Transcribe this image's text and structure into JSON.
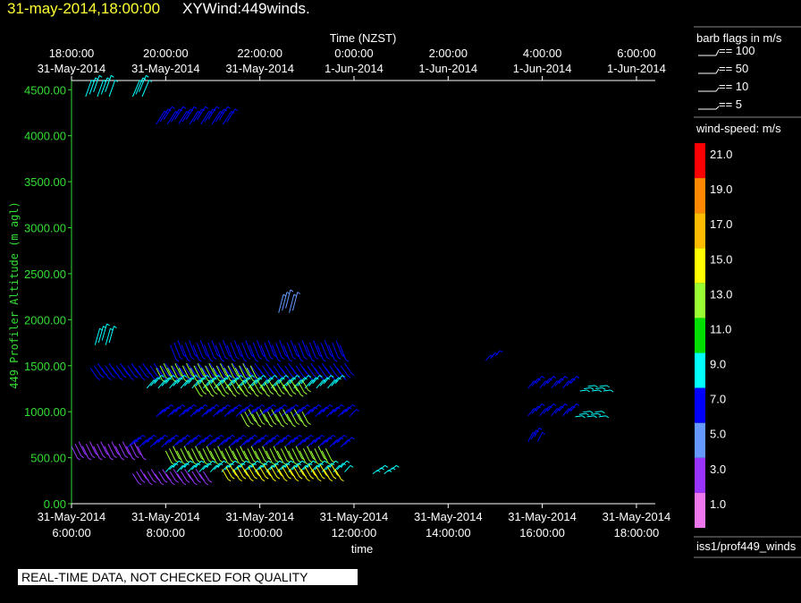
{
  "header": {
    "date_time": "31-may-2014,18:00:00",
    "title": "XYWind:449winds."
  },
  "banner": "REAL-TIME DATA, NOT CHECKED FOR QUALITY",
  "chart_data": {
    "type": "scatter",
    "title": "XYWind:449winds.",
    "xlabel": "time",
    "x2label": "Time (NZST)",
    "ylabel": "449 Profiler Altitude (m agl)",
    "ylim": [
      0,
      4600
    ],
    "grid": false,
    "x_ticks_bottom": [
      {
        "l1": "31-May-2014",
        "l2": "6:00:00"
      },
      {
        "l1": "31-May-2014",
        "l2": "8:00:00"
      },
      {
        "l1": "31-May-2014",
        "l2": "10:00:00"
      },
      {
        "l1": "31-May-2014",
        "l2": "12:00:00"
      },
      {
        "l1": "31-May-2014",
        "l2": "14:00:00"
      },
      {
        "l1": "31-May-2014",
        "l2": "16:00:00"
      },
      {
        "l1": "31-May-2014",
        "l2": "18:00:00"
      }
    ],
    "x_ticks_top": [
      {
        "l1": "18:00:00",
        "l2": "31-May-2014"
      },
      {
        "l1": "20:00:00",
        "l2": "31-May-2014"
      },
      {
        "l1": "22:00:00",
        "l2": "31-May-2014"
      },
      {
        "l1": "0:00:00",
        "l2": "1-Jun-2014"
      },
      {
        "l1": "2:00:00",
        "l2": "1-Jun-2014"
      },
      {
        "l1": "4:00:00",
        "l2": "1-Jun-2014"
      },
      {
        "l1": "6:00:00",
        "l2": "1-Jun-2014"
      }
    ],
    "y_ticks": [
      "0.00",
      "500.00",
      "1000.00",
      "1500.00",
      "2000.00",
      "2500.00",
      "3000.00",
      "3500.00",
      "4000.00",
      "4500.00"
    ],
    "barb_legend": {
      "title": "barb flags in m/s",
      "entries": [
        "== 100",
        "== 50",
        "== 10",
        "== 5"
      ]
    },
    "colorbar": {
      "title": "wind-speed: m/s",
      "levels": [
        {
          "label": "21.0",
          "color": "#ff0000"
        },
        {
          "label": "19.0",
          "color": "#ff8800"
        },
        {
          "label": "17.0",
          "color": "#ffbb00"
        },
        {
          "label": "15.0",
          "color": "#ffff00"
        },
        {
          "label": "13.0",
          "color": "#99ff33"
        },
        {
          "label": "11.0",
          "color": "#00dd00"
        },
        {
          "label": "9.0",
          "color": "#00ffff"
        },
        {
          "label": "7.0",
          "color": "#0000ff"
        },
        {
          "label": "5.0",
          "color": "#6699ff"
        },
        {
          "label": "3.0",
          "color": "#9933ff"
        },
        {
          "label": "1.0",
          "color": "#ee77ee"
        }
      ]
    },
    "source_label": "iss1/prof449_winds",
    "series": [
      {
        "x_start": 6.3,
        "x_end": 6.8,
        "altitude": 4450,
        "speed": 9,
        "dx": 0.25,
        "dy": 180
      },
      {
        "x_start": 7.3,
        "x_end": 7.5,
        "altitude": 4450,
        "speed": 9,
        "dx": 0.3,
        "dy": 180
      },
      {
        "x_start": 7.8,
        "x_end": 9.3,
        "altitude": 4150,
        "speed": 7,
        "dx": 0.35,
        "dy": 140
      },
      {
        "x_start": 6.5,
        "x_end": 6.8,
        "altitude": 1750,
        "speed": 8,
        "dx": 0.2,
        "dy": 180
      },
      {
        "x_start": 8.1,
        "x_end": 11.7,
        "altitude": 1750,
        "speed": 6,
        "dx": 0.25,
        "dy": -160
      },
      {
        "x_start": 10.4,
        "x_end": 10.7,
        "altitude": 2100,
        "speed": 4,
        "dx": 0.2,
        "dy": 200
      },
      {
        "x_start": 6.4,
        "x_end": 11.8,
        "altitude": 1500,
        "speed": 7,
        "dx": 0.3,
        "dy": -110
      },
      {
        "x_start": 7.8,
        "x_end": 9.8,
        "altitude": 1500,
        "speed": 12,
        "dx": 0.25,
        "dy": -130
      },
      {
        "x_start": 7.6,
        "x_end": 11.6,
        "altitude": 1280,
        "speed": 8,
        "dx": 0.3,
        "dy": 90
      },
      {
        "x_start": 8.6,
        "x_end": 10.9,
        "altitude": 1320,
        "speed": 12,
        "dx": 0.25,
        "dy": -110
      },
      {
        "x_start": 7.8,
        "x_end": 11.9,
        "altitude": 970,
        "speed": 6,
        "dx": 0.3,
        "dy": 80
      },
      {
        "x_start": 9.6,
        "x_end": 10.9,
        "altitude": 1000,
        "speed": 12,
        "dx": 0.25,
        "dy": -120
      },
      {
        "x_start": 6.0,
        "x_end": 7.4,
        "altitude": 650,
        "speed": 3,
        "dx": 0.25,
        "dy": -130
      },
      {
        "x_start": 7.2,
        "x_end": 11.8,
        "altitude": 640,
        "speed": 7,
        "dx": 0.3,
        "dy": 80
      },
      {
        "x_start": 8.0,
        "x_end": 11.4,
        "altitude": 600,
        "speed": 12,
        "dx": 0.25,
        "dy": -130
      },
      {
        "x_start": 7.3,
        "x_end": 8.8,
        "altitude": 350,
        "speed": 3,
        "dx": 0.25,
        "dy": -100
      },
      {
        "x_start": 8.0,
        "x_end": 11.8,
        "altitude": 370,
        "speed": 9,
        "dx": 0.25,
        "dy": 70
      },
      {
        "x_start": 9.2,
        "x_end": 11.6,
        "altitude": 400,
        "speed": 14,
        "dx": 0.25,
        "dy": -110
      },
      {
        "x_start": 12.4,
        "x_end": 12.8,
        "altitude": 350,
        "speed": 8,
        "dx": 0.2,
        "dy": 40
      },
      {
        "x_start": 14.8,
        "x_end": 15.0,
        "altitude": 1580,
        "speed": 6,
        "dx": 0.2,
        "dy": 60
      },
      {
        "x_start": 15.7,
        "x_end": 16.6,
        "altitude": 1280,
        "speed": 7,
        "dx": 0.25,
        "dy": 80
      },
      {
        "x_start": 16.8,
        "x_end": 17.3,
        "altitude": 1250,
        "speed": 9,
        "dx": 0.3,
        "dy": 10
      },
      {
        "x_start": 15.7,
        "x_end": 16.6,
        "altitude": 980,
        "speed": 6,
        "dx": 0.25,
        "dy": 80
      },
      {
        "x_start": 16.7,
        "x_end": 17.2,
        "altitude": 970,
        "speed": 9,
        "dx": 0.3,
        "dy": 10
      },
      {
        "x_start": 15.7,
        "x_end": 15.9,
        "altitude": 700,
        "speed": 7,
        "dx": 0.2,
        "dy": 100
      }
    ]
  }
}
